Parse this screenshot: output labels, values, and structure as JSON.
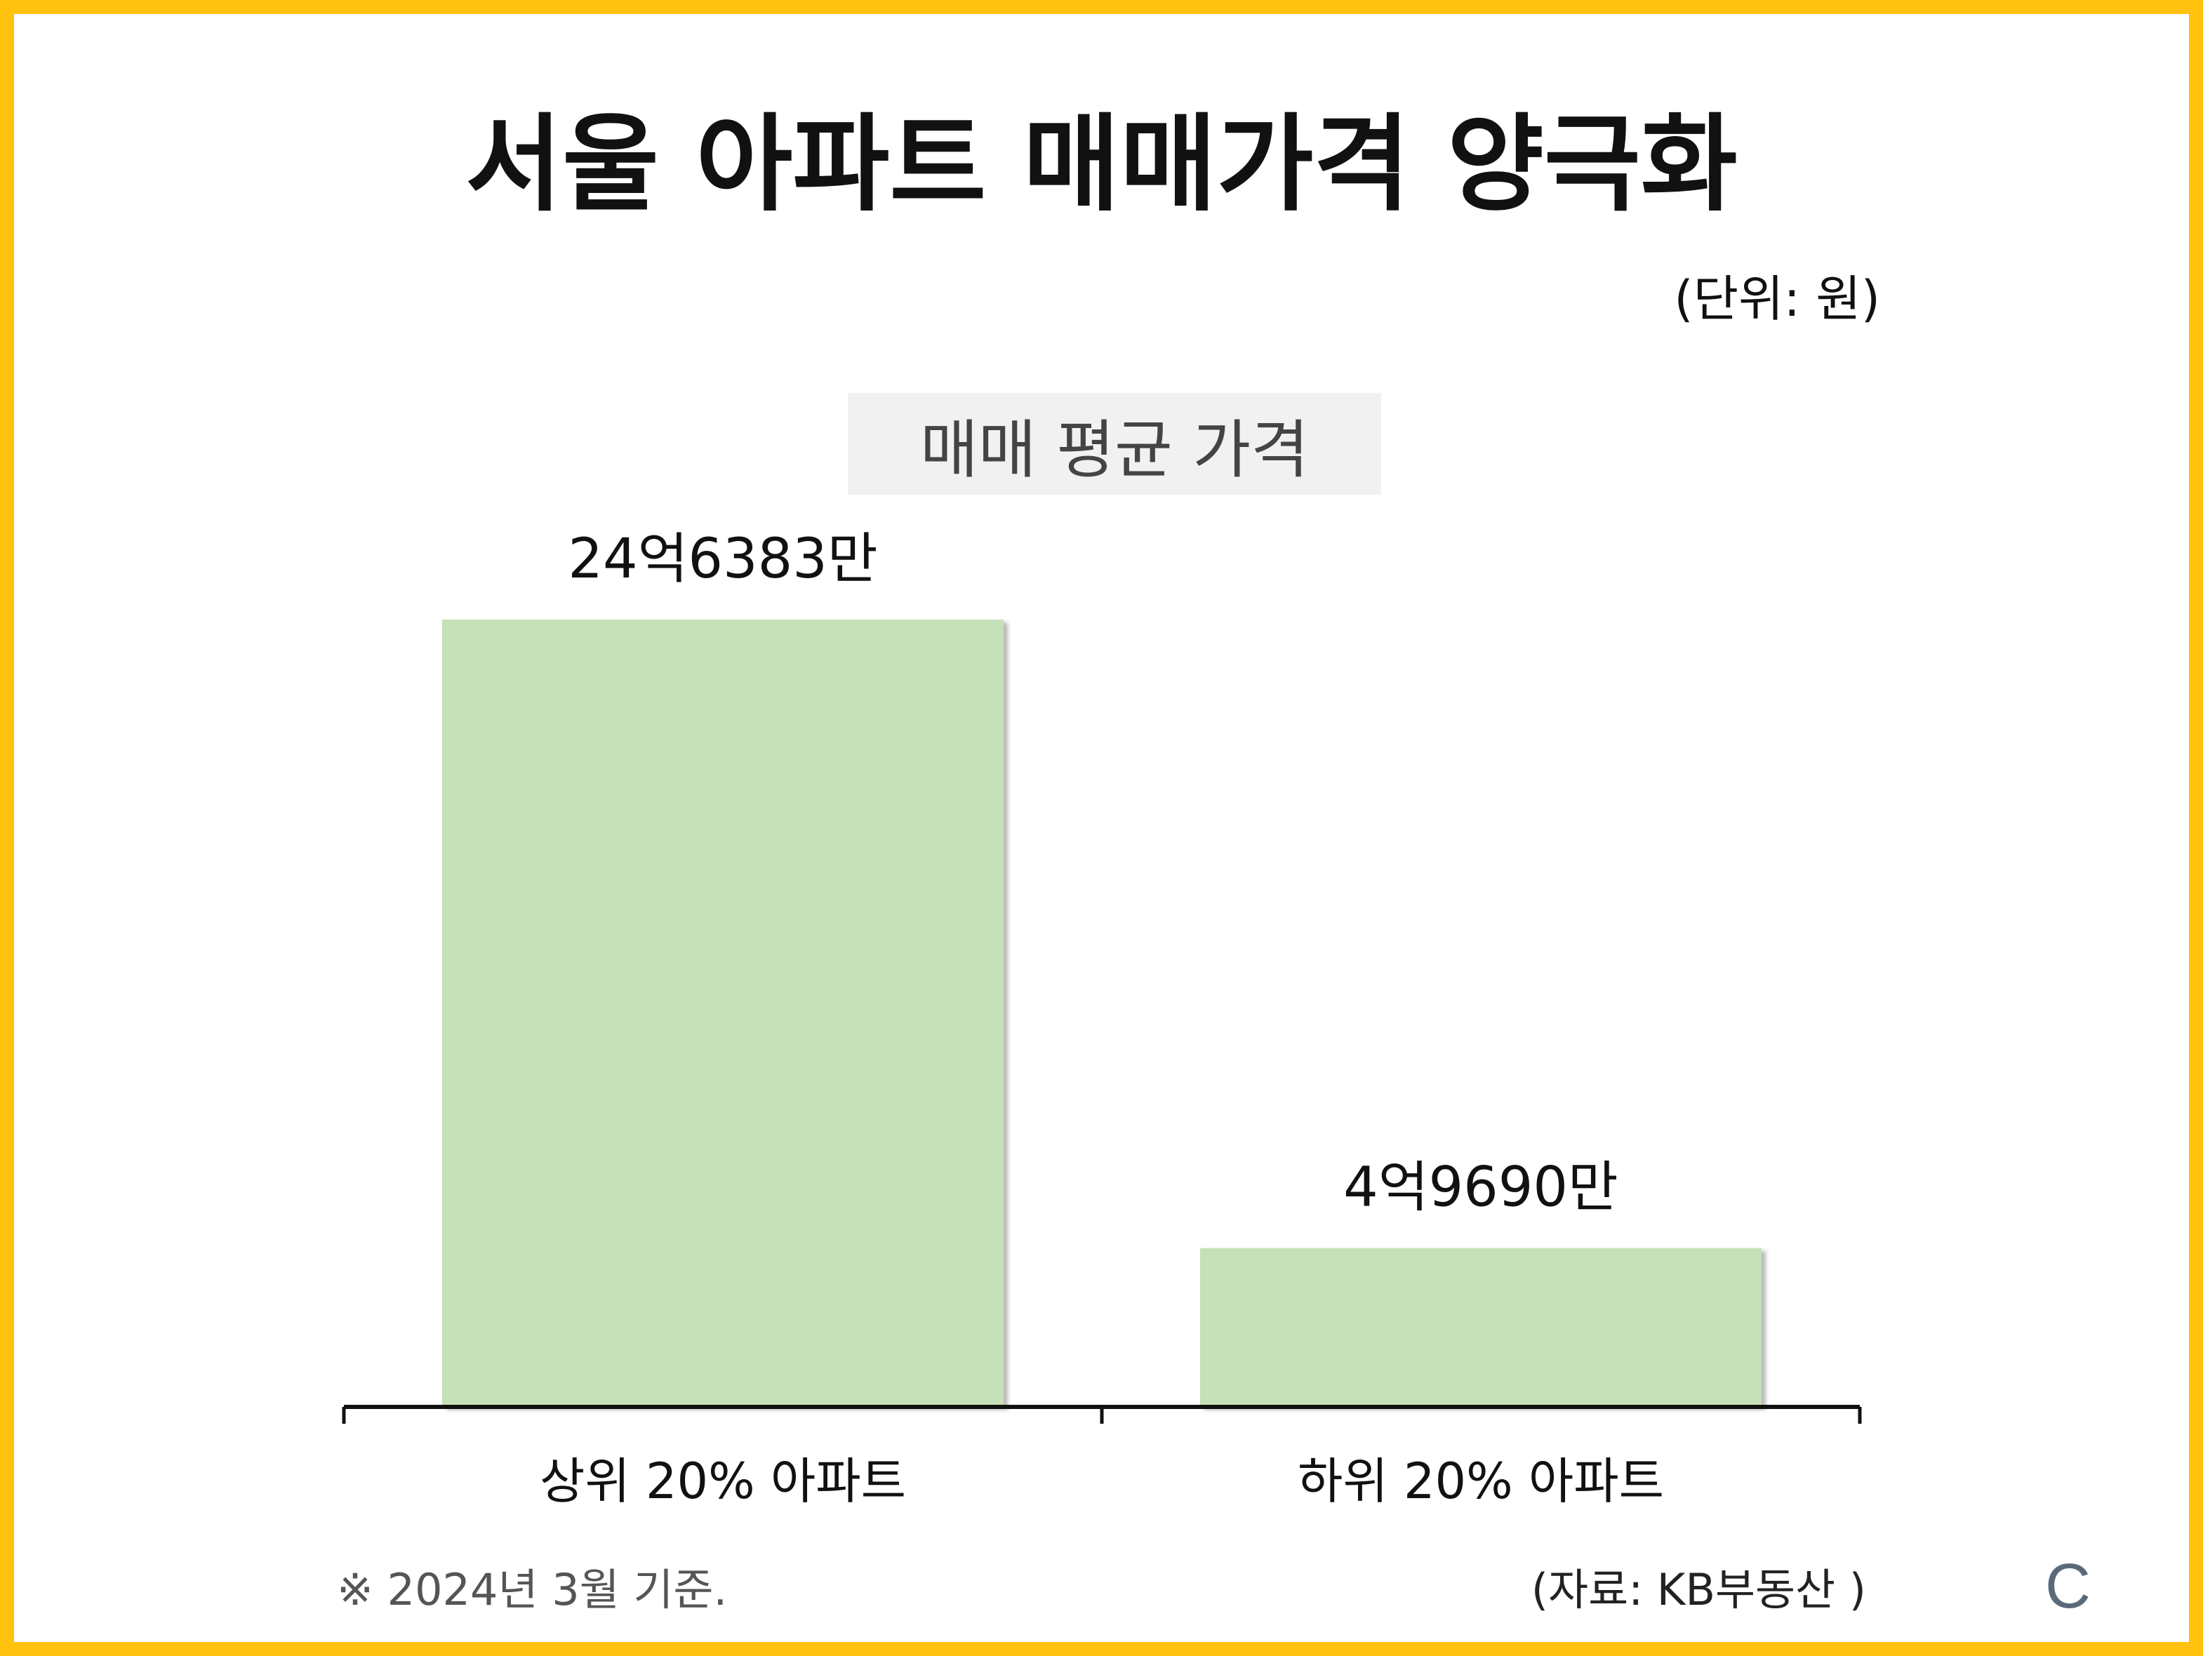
{
  "header": {
    "title": "서울 아파트 매매가격 양극화",
    "unit": "(단위: 원)"
  },
  "colors": {
    "border": "#FFC20E",
    "bar": "#C6E0B7",
    "axis": "#111111"
  },
  "chart_data": {
    "type": "bar",
    "title": "매매 평균 가격",
    "categories": [
      "상위 20% 아파트",
      "하위 20% 아파트"
    ],
    "values": [
      246383,
      49690
    ],
    "value_labels": [
      "24억6383만",
      "4억9690만"
    ],
    "unit": "만원",
    "xlabel": "",
    "ylabel": "",
    "ylim": [
      0,
      246383
    ],
    "grid": false,
    "legend": "none"
  },
  "footer": {
    "note": "※ 2024년 3월 기준.",
    "source": "(자료: KB부동산 )",
    "logo": "C"
  }
}
